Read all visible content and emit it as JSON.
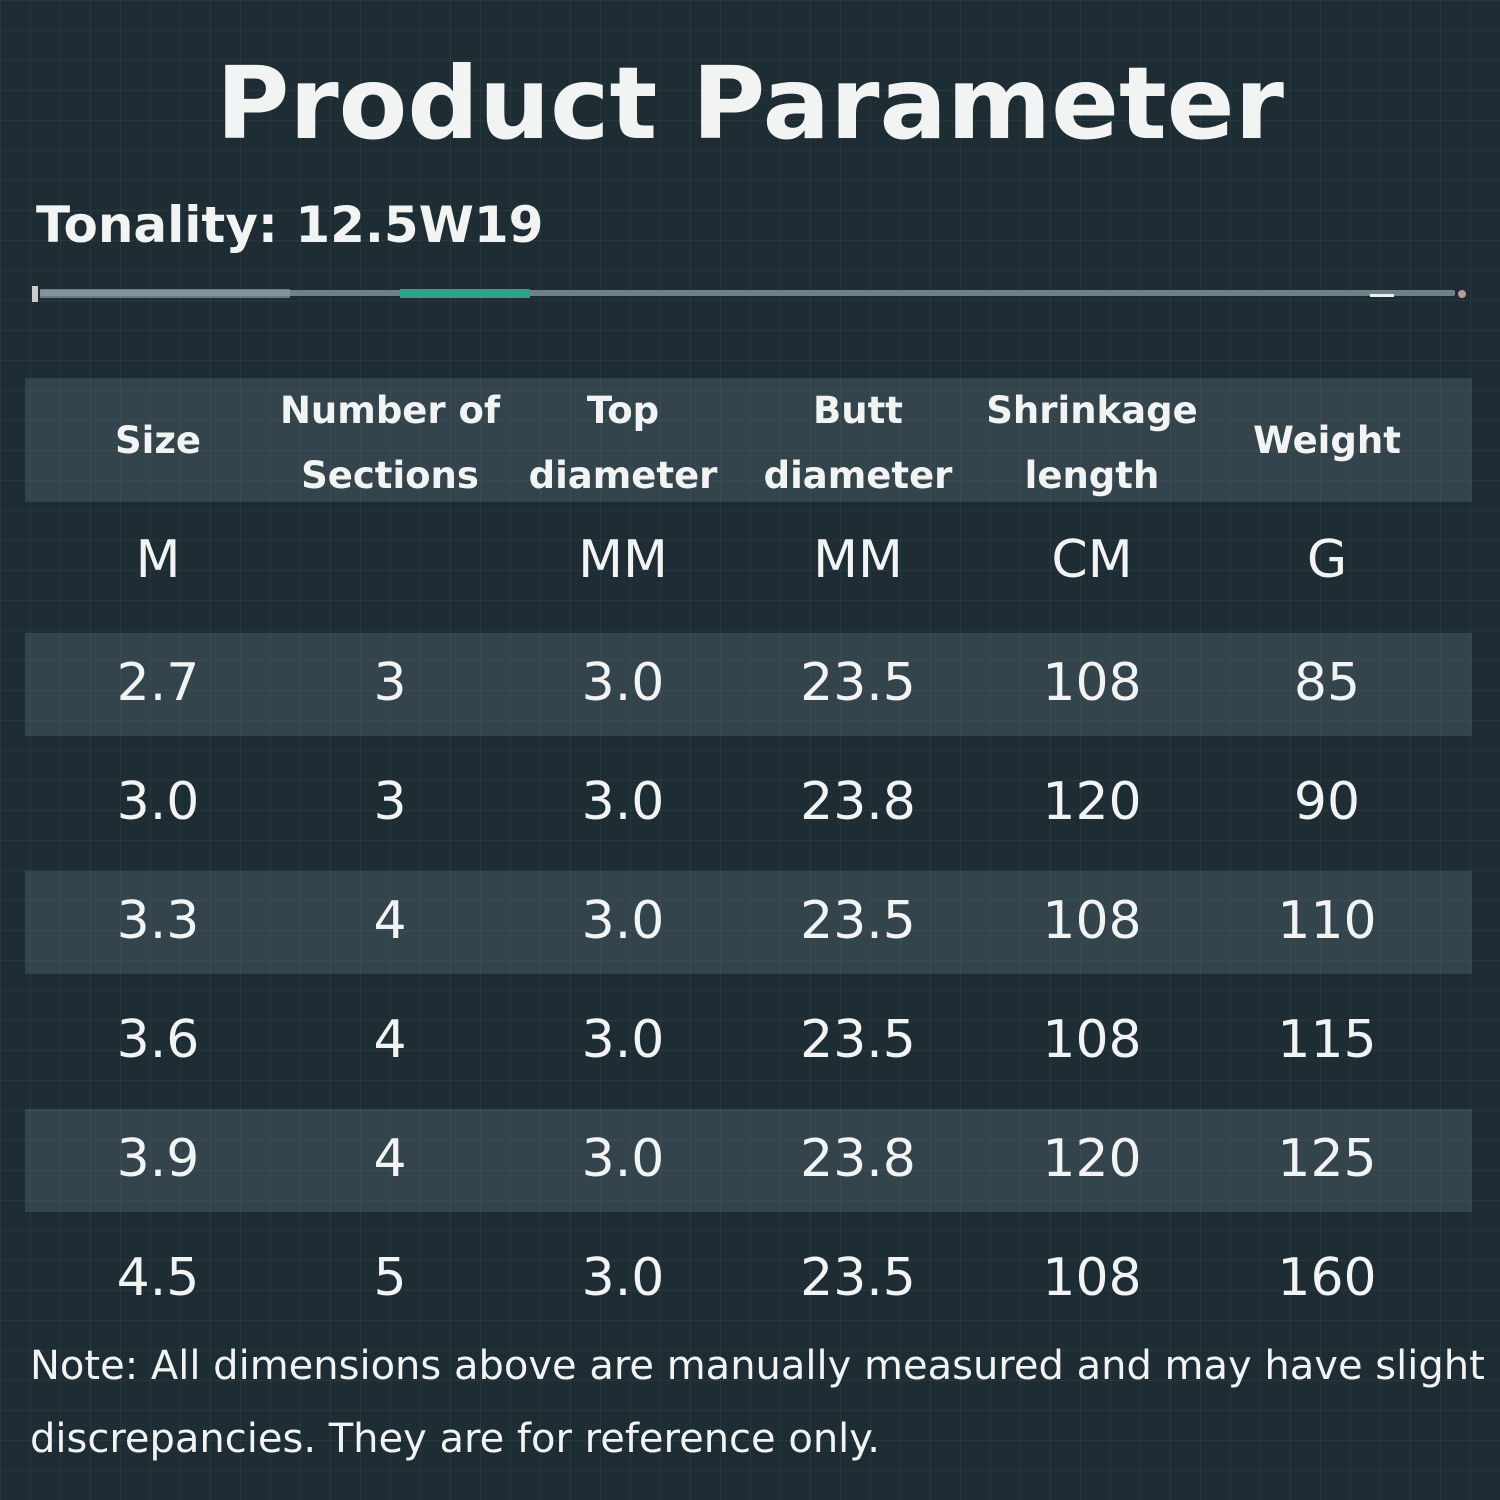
{
  "title": "Product Parameter",
  "tonality": "Tonality: 12.5W19",
  "table": {
    "headers": [
      [
        "Size"
      ],
      [
        "Number of",
        "Sections"
      ],
      [
        "Top",
        "diameter"
      ],
      [
        "Butt",
        "diameter"
      ],
      [
        "Shrinkage",
        "length"
      ],
      [
        "Weight"
      ]
    ],
    "units": [
      "M",
      null,
      "MM",
      "MM",
      "CM",
      "G"
    ],
    "rows": [
      [
        "2.7",
        "3",
        "3.0",
        "23.5",
        "108",
        "85"
      ],
      [
        "3.0",
        "3",
        "3.0",
        "23.8",
        "120",
        "90"
      ],
      [
        "3.3",
        "4",
        "3.0",
        "23.5",
        "108",
        "110"
      ],
      [
        "3.6",
        "4",
        "3.0",
        "23.5",
        "108",
        "115"
      ],
      [
        "3.9",
        "4",
        "3.0",
        "23.8",
        "120",
        "125"
      ],
      [
        "4.5",
        "5",
        "3.0",
        "23.5",
        "108",
        "160"
      ]
    ]
  },
  "note": [
    "Note: All dimensions above are manually measured and may have slight",
    "discrepancies. They are for reference only."
  ]
}
